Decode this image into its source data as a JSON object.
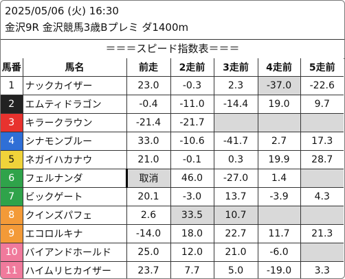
{
  "header": {
    "date_time": "2025/05/06 (火) 16:30",
    "race_info": "金沢9R 金沢競馬3歳Bプレミ ダ1400m"
  },
  "title": "＝＝＝スピード指数表＝＝＝",
  "columns": [
    "馬番",
    "馬名",
    "前走",
    "2走前",
    "3走前",
    "4走前",
    "5走前"
  ],
  "colors": {
    "1": "#ffffff",
    "2": "#222222",
    "3": "#e8322e",
    "4": "#2f6fd6",
    "5": "#f0d33a",
    "6": "#2fa34a",
    "7": "#2fa34a",
    "8": "#f39a38",
    "9": "#f39a38",
    "10": "#f07a9c",
    "11": "#f07a9c",
    "empty_cell": "#d9d9d9"
  },
  "rows": [
    {
      "num": "1",
      "name": "ナックカイザー",
      "v": [
        "23.0",
        "-0.3",
        "2.3",
        "-37.0",
        "-22.6"
      ]
    },
    {
      "num": "2",
      "name": "エムティドラゴン",
      "v": [
        "-0.4",
        "-11.0",
        "-14.4",
        "19.0",
        "9.7"
      ]
    },
    {
      "num": "3",
      "name": "キラークラウン",
      "v": [
        "-21.4",
        "-21.7",
        "",
        "",
        ""
      ]
    },
    {
      "num": "4",
      "name": "シナモンブルー",
      "v": [
        "33.0",
        "-10.6",
        "-41.7",
        "2.7",
        "17.3"
      ]
    },
    {
      "num": "5",
      "name": "ネガイハカナウ",
      "v": [
        "21.0",
        "-0.1",
        "0.3",
        "19.9",
        "28.7"
      ]
    },
    {
      "num": "6",
      "name": "フェルナンダ",
      "v": [
        "取消",
        "46.0",
        "-27.0",
        "1.4",
        ""
      ]
    },
    {
      "num": "7",
      "name": "ビックゲート",
      "v": [
        "20.1",
        "-3.0",
        "13.7",
        "-3.9",
        "4.3"
      ]
    },
    {
      "num": "8",
      "name": "クインズパフェ",
      "v": [
        "2.6",
        "33.5",
        "10.7",
        "",
        ""
      ]
    },
    {
      "num": "9",
      "name": "エコロルキナ",
      "v": [
        "-14.0",
        "18.0",
        "22.7",
        "11.7",
        "21.3"
      ]
    },
    {
      "num": "10",
      "name": "バイアンドホールド",
      "v": [
        "25.0",
        "12.0",
        "21.0",
        "-6.0",
        ""
      ]
    },
    {
      "num": "11",
      "name": "ハイムリヒカイザー",
      "v": [
        "23.7",
        "7.7",
        "5.0",
        "-19.0",
        "3.3"
      ]
    }
  ]
}
